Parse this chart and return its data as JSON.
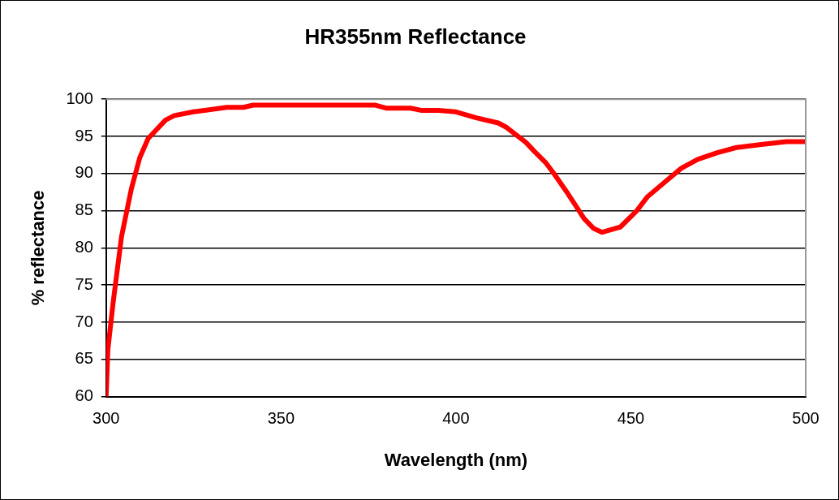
{
  "chart_data": {
    "type": "line",
    "title": "HR355nm Reflectance",
    "xlabel": "Wavelength (nm)",
    "ylabel": "% reflectance",
    "x": [
      300,
      300.5,
      302,
      304.4,
      307.2,
      309.6,
      312,
      317,
      319.5,
      325,
      334.5,
      339.3,
      342,
      360,
      377,
      380,
      387,
      390,
      395,
      400,
      405.8,
      412.1,
      414.5,
      420,
      422.4,
      425.6,
      428,
      432,
      436.7,
      439.4,
      441.8,
      447,
      451.7,
      454.8,
      459.6,
      464.4,
      469.1,
      474.7,
      480.2,
      487.3,
      494.5,
      500
    ],
    "series": [
      {
        "color": "#ff0000",
        "values": [
          60,
          66.3,
          72.6,
          81.5,
          87.9,
          92.1,
          94.7,
          97.2,
          97.8,
          98.3,
          98.9,
          98.9,
          99.2,
          99.2,
          99.2,
          98.8,
          98.8,
          98.5,
          98.5,
          98.3,
          97.5,
          96.8,
          96.2,
          94.2,
          93,
          91.5,
          90,
          87.3,
          83.9,
          82.6,
          82.1,
          82.8,
          85,
          86.9,
          88.8,
          90.7,
          91.9,
          92.8,
          93.5,
          93.9,
          94.3,
          94.3
        ]
      }
    ],
    "xlim": [
      300,
      500
    ],
    "xticks": [
      300,
      350,
      400,
      450,
      500
    ],
    "ylim": [
      60,
      100
    ],
    "yticks": [
      60,
      65,
      70,
      75,
      80,
      85,
      90,
      95,
      100
    ],
    "grid": "y",
    "legend": false,
    "marker": "none",
    "line_style": "solid"
  }
}
